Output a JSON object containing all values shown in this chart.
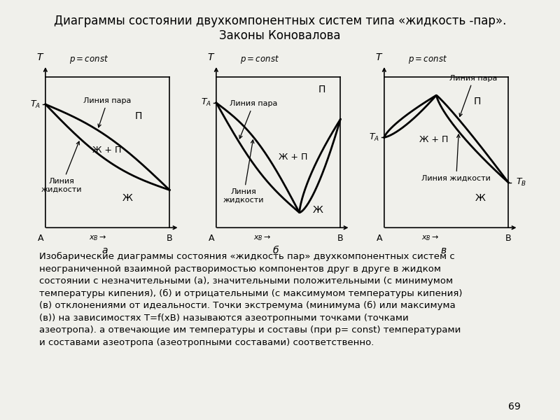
{
  "title_line1": "Диаграммы состоянии двухкомпонентных систем типа «жидкость -пар».",
  "title_line2": "Законы Коновалова",
  "bg_color": "#f0f0eb",
  "text_color": "#000000",
  "line_color": "#000000",
  "bottom_text": "Изобарические диаграммы состояния «жидкость пар» двухкомпонентных систем с неограниченной взаимной растворимостью компонентов друг в друге в жидком состоянии с незначительными (а), значительными положительными (с минимумом температуры кипения), (б) и отрицательными (с максимумом температуры кипения) (в) отклонениями от идеальности. Точки экстремума (минимума (б) или максимума (в)) на зависимостях Т=f(xВ) называются азеотропными точками (точками азеотропа). а отвечающие им температуры и составы (при р= const) температурами и составами азеотропа (азеотропными составами) соответственно."
}
